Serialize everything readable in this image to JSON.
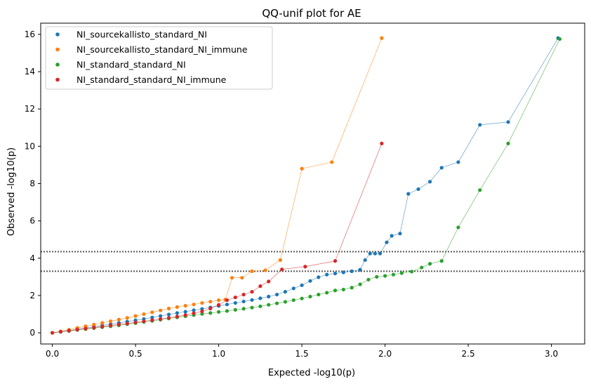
{
  "chart_data": {
    "type": "scatter",
    "title": "QQ-unif plot for AE",
    "xlabel": "Expected -log10(p)",
    "ylabel": "Observed -log10(p)",
    "xlim": [
      -0.07,
      3.2
    ],
    "ylim": [
      -0.6,
      16.6
    ],
    "xticks": [
      0.0,
      0.5,
      1.0,
      1.5,
      2.0,
      2.5,
      3.0
    ],
    "xtick_labels": [
      "0.0",
      "0.5",
      "1.0",
      "1.5",
      "2.0",
      "2.5",
      "3.0"
    ],
    "yticks": [
      0,
      2,
      4,
      6,
      8,
      10,
      12,
      14,
      16
    ],
    "ytick_labels": [
      "0",
      "2",
      "4",
      "6",
      "8",
      "10",
      "12",
      "14",
      "16"
    ],
    "grid": false,
    "legend_position": "top-left",
    "hlines": [
      4.35,
      3.3
    ],
    "hline_color": "#555555",
    "series": [
      {
        "name": "NI_sourcekallisto_standard_NI",
        "color": "#1f77b4",
        "tail_connected": true,
        "x": [
          0.0,
          0.05,
          0.1,
          0.15,
          0.2,
          0.25,
          0.3,
          0.35,
          0.4,
          0.45,
          0.5,
          0.55,
          0.6,
          0.65,
          0.7,
          0.75,
          0.8,
          0.85,
          0.9,
          0.95,
          1.0,
          1.05,
          1.1,
          1.15,
          1.2,
          1.25,
          1.3,
          1.35,
          1.4,
          1.45,
          1.5,
          1.55,
          1.6,
          1.65,
          1.7,
          1.75,
          1.8,
          1.85,
          1.88,
          1.91,
          1.94,
          1.97,
          2.01,
          2.04,
          2.09,
          2.14,
          2.2,
          2.27,
          2.34,
          2.44,
          2.57,
          2.74,
          3.04
        ],
        "y": [
          0.0,
          0.06,
          0.12,
          0.19,
          0.26,
          0.33,
          0.4,
          0.46,
          0.53,
          0.6,
          0.67,
          0.74,
          0.82,
          0.9,
          0.98,
          1.06,
          1.13,
          1.21,
          1.28,
          1.36,
          1.44,
          1.52,
          1.6,
          1.68,
          1.76,
          1.85,
          1.94,
          2.05,
          2.2,
          2.38,
          2.55,
          2.78,
          2.98,
          3.12,
          3.18,
          3.24,
          3.3,
          3.38,
          3.9,
          4.25,
          4.25,
          4.25,
          4.85,
          5.2,
          5.32,
          7.45,
          7.7,
          8.1,
          8.85,
          9.15,
          11.15,
          11.3,
          15.8
        ]
      },
      {
        "name": "NI_sourcekallisto_standard_NI_immune",
        "color": "#ff7f0e",
        "tail_connected": true,
        "x": [
          0.0,
          0.05,
          0.1,
          0.15,
          0.2,
          0.25,
          0.3,
          0.35,
          0.4,
          0.45,
          0.5,
          0.55,
          0.6,
          0.65,
          0.7,
          0.75,
          0.8,
          0.85,
          0.9,
          0.95,
          1.0,
          1.04,
          1.08,
          1.14,
          1.2,
          1.28,
          1.37,
          1.5,
          1.68,
          1.98
        ],
        "y": [
          0.0,
          0.08,
          0.17,
          0.26,
          0.35,
          0.44,
          0.53,
          0.62,
          0.71,
          0.8,
          0.9,
          1.0,
          1.1,
          1.2,
          1.3,
          1.38,
          1.45,
          1.52,
          1.6,
          1.67,
          1.75,
          1.78,
          2.95,
          2.95,
          3.3,
          3.35,
          3.9,
          8.8,
          9.15,
          15.8
        ]
      },
      {
        "name": "NI_standard_standard_NI",
        "color": "#2ca02c",
        "tail_connected": true,
        "x": [
          0.0,
          0.05,
          0.1,
          0.15,
          0.2,
          0.25,
          0.3,
          0.35,
          0.4,
          0.45,
          0.5,
          0.55,
          0.6,
          0.65,
          0.7,
          0.75,
          0.8,
          0.85,
          0.9,
          0.95,
          1.0,
          1.05,
          1.1,
          1.15,
          1.2,
          1.25,
          1.3,
          1.35,
          1.4,
          1.45,
          1.5,
          1.55,
          1.6,
          1.65,
          1.7,
          1.75,
          1.8,
          1.85,
          1.9,
          1.95,
          2.0,
          2.05,
          2.1,
          2.16,
          2.22,
          2.27,
          2.34,
          2.44,
          2.57,
          2.74,
          3.05
        ],
        "y": [
          0.0,
          0.05,
          0.1,
          0.15,
          0.2,
          0.25,
          0.3,
          0.35,
          0.4,
          0.46,
          0.52,
          0.58,
          0.64,
          0.7,
          0.77,
          0.83,
          0.89,
          0.95,
          1.01,
          1.06,
          1.12,
          1.17,
          1.23,
          1.29,
          1.35,
          1.42,
          1.5,
          1.58,
          1.66,
          1.75,
          1.84,
          1.94,
          2.05,
          2.15,
          2.27,
          2.32,
          2.42,
          2.6,
          2.85,
          3.0,
          3.05,
          3.12,
          3.2,
          3.28,
          3.5,
          3.7,
          3.85,
          5.65,
          7.65,
          10.15,
          15.75
        ]
      },
      {
        "name": "NI_standard_standard_NI_immune",
        "color": "#d62728",
        "tail_connected": true,
        "x": [
          0.0,
          0.05,
          0.1,
          0.15,
          0.2,
          0.25,
          0.3,
          0.35,
          0.4,
          0.45,
          0.5,
          0.55,
          0.6,
          0.65,
          0.7,
          0.75,
          0.8,
          0.85,
          0.9,
          0.95,
          1.0,
          1.05,
          1.1,
          1.15,
          1.2,
          1.25,
          1.3,
          1.38,
          1.52,
          1.7,
          1.98
        ],
        "y": [
          0.0,
          0.06,
          0.11,
          0.17,
          0.22,
          0.28,
          0.33,
          0.39,
          0.45,
          0.5,
          0.56,
          0.62,
          0.68,
          0.74,
          0.8,
          0.87,
          0.95,
          1.05,
          1.15,
          1.3,
          1.5,
          1.75,
          1.9,
          2.05,
          2.2,
          2.5,
          2.75,
          3.4,
          3.55,
          3.85,
          10.15
        ]
      }
    ]
  }
}
